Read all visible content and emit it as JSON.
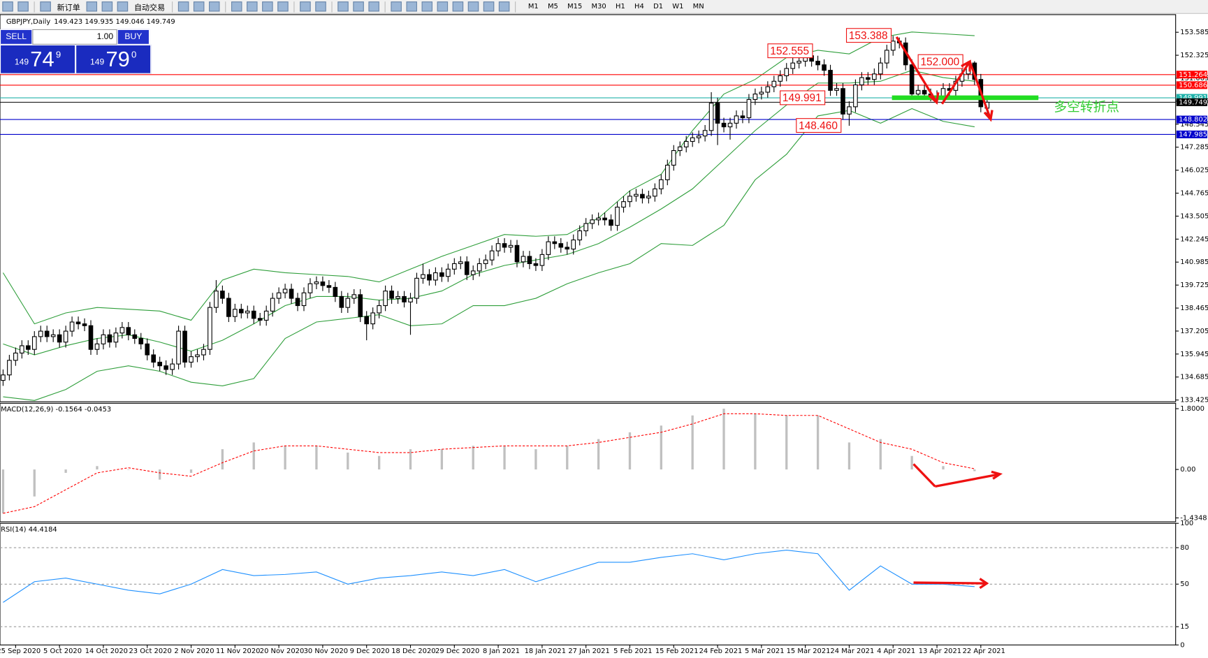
{
  "toolbar": {
    "new_order": "新订单",
    "auto_trading": "自动交易",
    "timeframes": [
      "M1",
      "M5",
      "M15",
      "M30",
      "H1",
      "H4",
      "D1",
      "W1",
      "MN"
    ]
  },
  "one_click": {
    "sell": "SELL",
    "buy": "BUY",
    "lot": "1.00",
    "sell_price": {
      "small": "149",
      "big": "74",
      "frac": "9"
    },
    "buy_price": {
      "small": "149",
      "big": "79",
      "frac": "0"
    }
  },
  "chart_data": [
    {
      "type": "candlestick",
      "title": "GBPJPY,Daily",
      "ohlc_text": "149.423 149.935 149.046 149.749",
      "categories": [
        null,
        null,
        "25 Sep 2020",
        null,
        null,
        null,
        null,
        null,
        null,
        "5 Oct 2020",
        null,
        null,
        null,
        null,
        null,
        null,
        "14 Oct 2020",
        null,
        null,
        null,
        null,
        null,
        null,
        "23 Oct 2020",
        null,
        null,
        null,
        null,
        null,
        null,
        "2 Nov 2020",
        null,
        null,
        null,
        null,
        null,
        null,
        "11 Nov 2020",
        null,
        null,
        null,
        null,
        null,
        null,
        "20 Nov 2020",
        null,
        null,
        null,
        null,
        null,
        null,
        "30 Nov 2020",
        null,
        null,
        null,
        null,
        null,
        null,
        "9 Dec 2020",
        null,
        null,
        null,
        null,
        null,
        null,
        "18 Dec 2020",
        null,
        null,
        null,
        null,
        null,
        null,
        "29 Dec 2020",
        null,
        null,
        null,
        null,
        null,
        null,
        "8 Jan 2021",
        null,
        null,
        null,
        null,
        null,
        null,
        "18 Jan 2021",
        null,
        null,
        null,
        null,
        null,
        null,
        "27 Jan 2021",
        null,
        null,
        null,
        null,
        null,
        null,
        "5 Feb 2021",
        null,
        null,
        null,
        null,
        null,
        null,
        "15 Feb 2021",
        null,
        null,
        null,
        null,
        null,
        null,
        "24 Feb 2021",
        null,
        null,
        null,
        null,
        null,
        null,
        "5 Mar 2021",
        null,
        null,
        null,
        null,
        null,
        null,
        "15 Mar 2021",
        null,
        null,
        null,
        null,
        null,
        null,
        "24 Mar 2021",
        null,
        null,
        null,
        null,
        null,
        null,
        "4 Apr 2021",
        null,
        null,
        null,
        null,
        null,
        null,
        "13 Apr 2021",
        null,
        null,
        null,
        null,
        null,
        null,
        "22 Apr 2021",
        null
      ],
      "open": [
        134.5,
        134.8,
        135.6,
        136.0,
        136.4,
        136.2,
        136.9,
        137.2,
        136.9,
        137.0,
        136.6,
        137.2,
        137.7,
        137.6,
        137.5,
        136.2,
        136.5,
        137.0,
        136.6,
        137.1,
        137.4,
        137.0,
        136.8,
        136.5,
        135.9,
        135.5,
        135.3,
        135.1,
        135.4,
        137.2,
        135.5,
        135.8,
        135.9,
        136.2,
        138.5,
        139.4,
        139.0,
        138.0,
        138.4,
        138.2,
        138.3,
        137.9,
        137.8,
        138.3,
        139.0,
        139.3,
        139.5,
        139.0,
        138.6,
        139.3,
        139.8,
        139.9,
        139.7,
        139.6,
        139.1,
        138.5,
        139.0,
        139.2,
        138.0,
        137.6,
        138.2,
        138.6,
        139.4,
        139.0,
        139.1,
        138.8,
        139.0,
        140.1,
        140.3,
        140.0,
        140.4,
        140.2,
        140.6,
        140.9,
        141.0,
        140.3,
        140.5,
        140.9,
        141.1,
        141.6,
        142.0,
        141.8,
        141.9,
        141.0,
        141.3,
        140.9,
        140.8,
        141.4,
        142.1,
        142.0,
        141.8,
        141.7,
        142.2,
        142.7,
        143.1,
        143.3,
        143.4,
        143.3,
        143.0,
        144.0,
        144.3,
        144.6,
        144.7,
        144.5,
        144.6,
        145.0,
        145.5,
        146.3,
        147.1,
        147.3,
        147.6,
        147.8,
        147.9,
        148.2,
        149.7,
        148.6,
        148.4,
        148.6,
        149.0,
        148.9,
        149.9,
        150.2,
        150.3,
        150.6,
        150.9,
        151.2,
        151.6,
        151.9,
        152.0,
        152.3,
        152.0,
        151.8,
        151.5,
        150.4,
        150.5,
        149.1,
        149.5,
        150.7,
        151.1,
        151.0,
        151.3,
        151.9,
        152.6,
        153.1,
        153.0,
        151.8,
        150.2,
        150.4,
        150.2,
        150.1,
        150.0,
        150.5,
        150.4,
        150.9,
        151.3,
        151.9,
        151.0,
        149.423
      ],
      "high": [
        135.1,
        135.9,
        136.3,
        136.7,
        136.7,
        137.2,
        137.5,
        137.5,
        137.3,
        137.3,
        137.5,
        138.0,
        138.0,
        137.9,
        137.8,
        136.8,
        137.3,
        137.3,
        137.4,
        137.7,
        137.7,
        137.3,
        137.1,
        136.8,
        136.2,
        135.8,
        135.6,
        135.7,
        137.5,
        137.5,
        136.1,
        136.2,
        136.5,
        138.8,
        140.0,
        139.7,
        139.3,
        138.7,
        138.7,
        138.6,
        138.6,
        138.2,
        138.6,
        139.3,
        139.6,
        139.8,
        139.8,
        139.3,
        139.6,
        140.1,
        140.2,
        140.2,
        140.0,
        139.9,
        139.4,
        139.3,
        139.5,
        139.5,
        138.3,
        138.5,
        138.9,
        139.7,
        139.7,
        139.4,
        139.4,
        139.3,
        140.4,
        140.9,
        140.6,
        140.7,
        140.7,
        140.9,
        141.2,
        141.3,
        141.3,
        140.8,
        141.2,
        141.4,
        141.9,
        142.3,
        142.3,
        142.2,
        142.2,
        141.6,
        141.6,
        141.2,
        141.7,
        142.4,
        142.4,
        142.3,
        142.1,
        142.5,
        143.0,
        143.4,
        143.6,
        143.7,
        143.7,
        143.6,
        144.3,
        144.6,
        144.9,
        145.0,
        145.0,
        144.9,
        145.3,
        145.8,
        146.6,
        147.4,
        147.6,
        147.9,
        148.1,
        148.2,
        148.5,
        150.3,
        150.0,
        148.9,
        148.9,
        149.3,
        149.3,
        150.2,
        150.5,
        150.6,
        150.9,
        151.2,
        151.5,
        151.9,
        152.2,
        152.4,
        152.555,
        152.5,
        152.3,
        152.1,
        151.8,
        150.8,
        150.8,
        149.8,
        151.0,
        151.4,
        151.4,
        151.6,
        152.2,
        152.9,
        153.388,
        153.3,
        153.3,
        152.1,
        150.7,
        150.7,
        150.5,
        150.4,
        150.8,
        150.8,
        151.2,
        151.6,
        152.0,
        152.0,
        151.3,
        149.935
      ],
      "low": [
        134.2,
        134.5,
        135.3,
        135.7,
        135.9,
        135.9,
        136.6,
        136.6,
        136.6,
        136.3,
        136.3,
        136.9,
        137.3,
        137.2,
        135.9,
        135.9,
        136.2,
        136.3,
        136.3,
        136.8,
        136.7,
        136.5,
        136.2,
        135.6,
        135.2,
        135.0,
        134.8,
        134.8,
        135.1,
        135.2,
        135.2,
        135.5,
        135.6,
        135.9,
        138.2,
        138.7,
        137.7,
        137.7,
        137.9,
        137.9,
        137.6,
        137.5,
        137.5,
        138.0,
        138.7,
        139.0,
        138.7,
        138.3,
        138.3,
        139.0,
        139.5,
        139.4,
        139.3,
        138.8,
        138.2,
        138.2,
        138.7,
        137.7,
        136.7,
        137.3,
        137.9,
        138.3,
        138.7,
        138.7,
        138.5,
        137.0,
        138.7,
        139.8,
        139.7,
        139.7,
        139.9,
        139.9,
        140.3,
        140.6,
        140.0,
        140.0,
        140.2,
        140.6,
        140.8,
        141.3,
        141.5,
        141.5,
        140.7,
        140.7,
        140.6,
        140.5,
        140.5,
        141.1,
        141.7,
        141.5,
        141.4,
        141.4,
        141.9,
        142.4,
        142.8,
        143.0,
        143.0,
        142.7,
        142.7,
        143.7,
        144.0,
        144.3,
        144.2,
        144.2,
        144.3,
        144.7,
        145.2,
        146.0,
        146.8,
        147.0,
        147.3,
        147.5,
        147.6,
        147.9,
        147.4,
        148.1,
        147.7,
        148.3,
        148.6,
        148.6,
        149.6,
        149.9,
        150.0,
        150.3,
        150.6,
        150.9,
        151.3,
        151.6,
        151.7,
        151.7,
        151.5,
        151.2,
        150.1,
        150.1,
        148.8,
        148.46,
        149.2,
        150.4,
        150.7,
        150.7,
        151.0,
        151.6,
        152.3,
        152.7,
        151.5,
        149.9,
        149.9,
        149.9,
        149.8,
        149.7,
        149.7,
        150.1,
        150.1,
        150.6,
        151.0,
        150.7,
        149.2,
        149.046
      ],
      "close": [
        134.8,
        135.6,
        136.0,
        136.4,
        136.2,
        136.9,
        137.2,
        136.9,
        137.0,
        136.6,
        137.2,
        137.7,
        137.6,
        137.5,
        136.2,
        136.5,
        137.0,
        136.6,
        137.1,
        137.4,
        137.0,
        136.8,
        136.5,
        135.9,
        135.5,
        135.3,
        135.1,
        135.4,
        137.2,
        135.5,
        135.8,
        135.9,
        136.2,
        138.5,
        139.4,
        139.0,
        138.0,
        138.4,
        138.2,
        138.3,
        137.9,
        137.8,
        138.3,
        139.0,
        139.3,
        139.5,
        139.0,
        138.6,
        139.3,
        139.8,
        139.9,
        139.7,
        139.6,
        139.1,
        138.5,
        139.0,
        139.2,
        138.0,
        137.6,
        138.2,
        138.6,
        139.4,
        139.0,
        139.1,
        138.8,
        139.0,
        140.1,
        140.3,
        140.0,
        140.4,
        140.2,
        140.6,
        140.9,
        141.0,
        140.3,
        140.5,
        140.9,
        141.1,
        141.6,
        142.0,
        141.8,
        141.9,
        141.0,
        141.3,
        140.9,
        140.8,
        141.4,
        142.1,
        142.0,
        141.8,
        141.7,
        142.2,
        142.7,
        143.1,
        143.3,
        143.4,
        143.3,
        143.0,
        144.0,
        144.3,
        144.6,
        144.7,
        144.5,
        144.6,
        145.0,
        145.5,
        146.3,
        147.1,
        147.3,
        147.6,
        147.8,
        147.9,
        148.2,
        149.7,
        148.6,
        148.4,
        148.6,
        149.0,
        148.9,
        149.9,
        150.2,
        150.3,
        150.6,
        150.9,
        151.2,
        151.6,
        151.9,
        152.0,
        152.3,
        152.0,
        151.8,
        151.5,
        150.4,
        150.5,
        149.1,
        149.5,
        150.7,
        151.1,
        151.0,
        151.3,
        151.9,
        152.6,
        153.1,
        153.0,
        151.8,
        150.2,
        150.4,
        150.2,
        150.1,
        150.0,
        150.5,
        150.4,
        150.9,
        151.3,
        151.9,
        151.0,
        149.5,
        149.749
      ],
      "ylim": [
        133.33,
        154.51
      ],
      "yticks": [
        153.585,
        152.325,
        151.065,
        149.805,
        148.545,
        147.285,
        146.025,
        144.765,
        143.505,
        142.245,
        140.985,
        139.725,
        138.465,
        137.205,
        135.945,
        134.685,
        133.425
      ],
      "bands": {
        "color": "#2e9e3a",
        "x": [
          0,
          5,
          10,
          15,
          20,
          25,
          30,
          35,
          40,
          45,
          50,
          55,
          60,
          65,
          70,
          75,
          80,
          85,
          90,
          95,
          100,
          105,
          110,
          115,
          120,
          125,
          130,
          135,
          140,
          145,
          150,
          155
        ],
        "upper": [
          140.4,
          137.6,
          138.2,
          138.5,
          138.4,
          138.3,
          137.8,
          140.0,
          140.6,
          140.4,
          140.3,
          140.2,
          139.9,
          140.6,
          141.3,
          141.9,
          142.5,
          142.4,
          142.5,
          143.4,
          144.9,
          145.8,
          148.2,
          150.2,
          151.0,
          152.2,
          152.6,
          152.4,
          153.3,
          153.6,
          153.5,
          153.4
        ],
        "middle": [
          136.5,
          135.9,
          136.4,
          136.8,
          137.0,
          136.6,
          136.1,
          136.7,
          137.6,
          138.6,
          139.1,
          139.1,
          138.9,
          139.0,
          139.4,
          140.3,
          140.8,
          141.1,
          141.4,
          142.0,
          142.9,
          143.9,
          145.0,
          146.6,
          148.2,
          149.6,
          150.8,
          150.8,
          150.9,
          151.5,
          151.1,
          150.9
        ],
        "lower": [
          133.6,
          133.4,
          134.0,
          135.0,
          135.3,
          135.0,
          134.4,
          134.2,
          134.6,
          136.8,
          137.7,
          137.9,
          138.1,
          137.5,
          137.6,
          138.6,
          138.6,
          139.0,
          139.8,
          140.4,
          140.9,
          142.0,
          141.9,
          143.0,
          145.5,
          146.9,
          149.0,
          149.3,
          148.6,
          149.4,
          148.7,
          148.4
        ]
      },
      "hlines": [
        {
          "value": 151.264,
          "color": "#ff0000"
        },
        {
          "value": 150.686,
          "color": "#ff0000"
        },
        {
          "value": 149.991,
          "color": "#20b2aa"
        },
        {
          "value": 149.749,
          "color": "#000000"
        },
        {
          "value": 148.802,
          "color": "#0000cc"
        },
        {
          "value": 147.985,
          "color": "#0000cc"
        }
      ],
      "annotations": [
        "153.388",
        "152.555",
        "152.000",
        "149.991",
        "148.460",
        "多空转折点"
      ]
    },
    {
      "type": "macd",
      "title": "MACD(12,26,9) -0.1564 -0.0453",
      "x": [
        0,
        5,
        10,
        15,
        20,
        25,
        30,
        35,
        40,
        45,
        50,
        55,
        60,
        65,
        70,
        75,
        80,
        85,
        90,
        95,
        100,
        105,
        110,
        115,
        120,
        125,
        130,
        135,
        140,
        145,
        150,
        155
      ],
      "histogram": [
        -1.3,
        -0.8,
        -0.1,
        0.1,
        0.0,
        -0.3,
        -0.1,
        0.6,
        0.8,
        0.7,
        0.7,
        0.5,
        0.4,
        0.6,
        0.6,
        0.7,
        0.7,
        0.6,
        0.7,
        0.9,
        1.1,
        1.3,
        1.6,
        1.8,
        1.65,
        1.6,
        1.6,
        0.8,
        0.9,
        0.4,
        0.1,
        -0.05
      ],
      "signal": [
        -1.3,
        -1.1,
        -0.6,
        -0.1,
        0.05,
        -0.1,
        -0.2,
        0.2,
        0.55,
        0.7,
        0.7,
        0.6,
        0.5,
        0.5,
        0.6,
        0.65,
        0.7,
        0.7,
        0.7,
        0.8,
        0.95,
        1.1,
        1.35,
        1.65,
        1.65,
        1.6,
        1.6,
        1.2,
        0.8,
        0.6,
        0.2,
        0.02
      ],
      "hist_color": "#c0c0c0",
      "signal_color": "#ff0000",
      "ylim": [
        -1.55,
        1.96
      ],
      "yticks": [
        {
          "value": 1.8,
          "label": "1.8000"
        },
        {
          "value": 0,
          "label": "0.00"
        },
        {
          "value": -1.4348,
          "label": "-1.4348"
        }
      ]
    },
    {
      "type": "rsi",
      "title": "RSI(14) 44.4184",
      "x": [
        0,
        5,
        10,
        15,
        20,
        25,
        30,
        35,
        40,
        45,
        50,
        55,
        60,
        65,
        70,
        75,
        80,
        85,
        90,
        95,
        100,
        105,
        110,
        115,
        120,
        125,
        130,
        135,
        140,
        145,
        150,
        155
      ],
      "values": [
        35,
        52,
        55,
        50,
        45,
        42,
        50,
        62,
        57,
        58,
        60,
        50,
        55,
        57,
        60,
        57,
        62,
        52,
        60,
        68,
        68,
        72,
        75,
        70,
        75,
        78,
        75,
        45,
        65,
        50,
        50,
        48
      ],
      "color": "#1e90ff",
      "grid": true,
      "ylim": [
        0,
        100
      ],
      "yticks": [
        100,
        80,
        50,
        15,
        0
      ]
    }
  ]
}
